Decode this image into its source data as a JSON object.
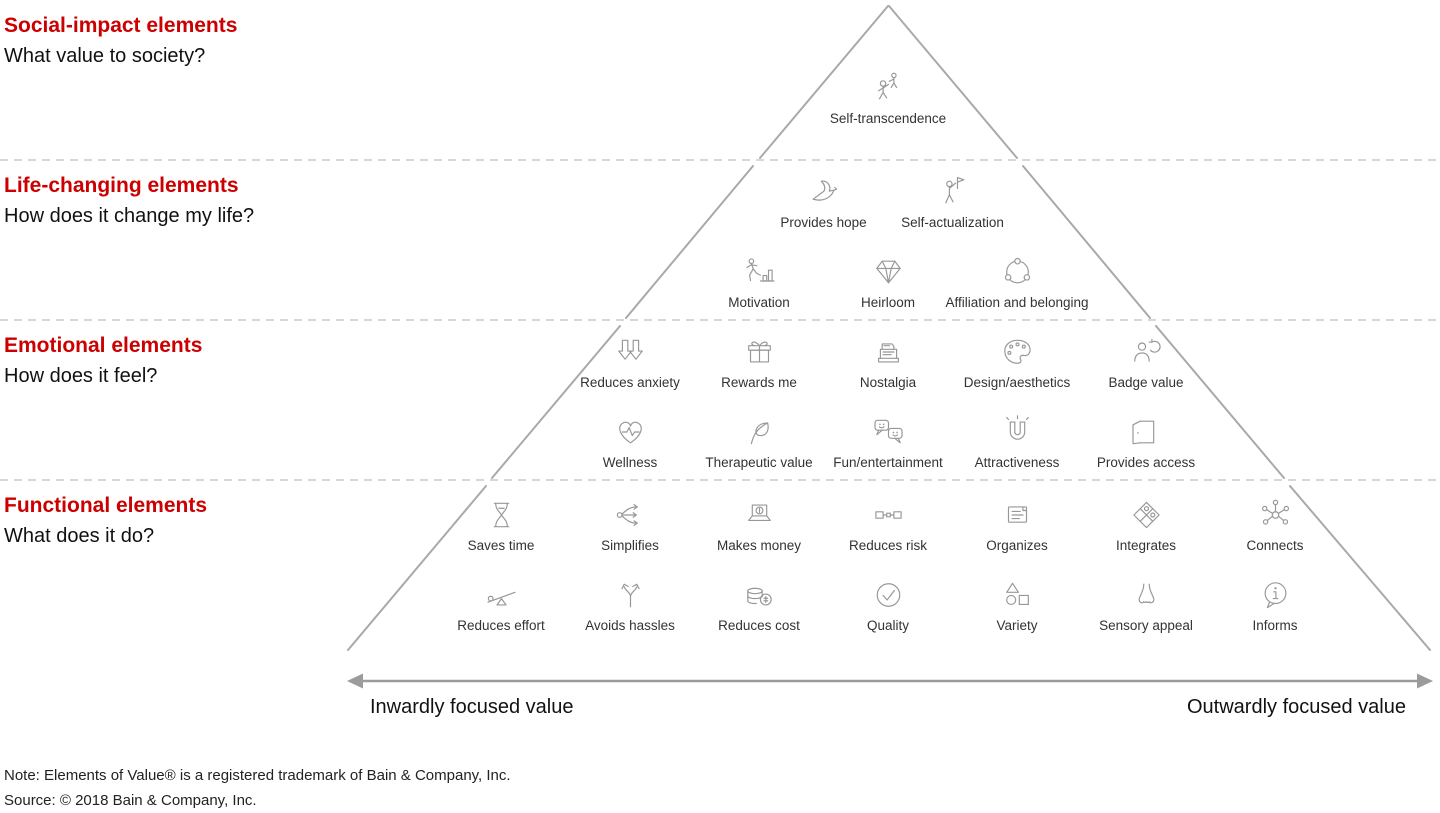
{
  "colors": {
    "heading_red": "#cc0000",
    "icon_gray": "#979797",
    "pyramid_line": "#a9a9a9",
    "divider_gray": "#cccccc",
    "arrow_gray": "#9b9b9b",
    "label_gray": "#333333"
  },
  "tiers": [
    {
      "id": "social-impact",
      "heading": "Social-impact elements",
      "question": "What value to society?",
      "rows": [
        [
          {
            "label": "Self-transcendence",
            "icon": "climbers"
          }
        ]
      ]
    },
    {
      "id": "life-changing",
      "heading": "Life-changing elements",
      "question": "How does it change my life?",
      "rows": [
        [
          {
            "label": "Provides hope",
            "icon": "dove"
          },
          {
            "label": "Self-actualization",
            "icon": "person-flag"
          }
        ],
        [
          {
            "label": "Motivation",
            "icon": "runner-chart"
          },
          {
            "label": "Heirloom",
            "icon": "diamond"
          },
          {
            "label": "Affiliation and belonging",
            "icon": "people-circle"
          }
        ]
      ]
    },
    {
      "id": "emotional",
      "heading": "Emotional elements",
      "question": "How does it feel?",
      "rows": [
        [
          {
            "label": "Reduces anxiety",
            "icon": "down-arrows"
          },
          {
            "label": "Rewards me",
            "icon": "gift"
          },
          {
            "label": "Nostalgia",
            "icon": "cash-register"
          },
          {
            "label": "Design/aesthetics",
            "icon": "palette"
          },
          {
            "label": "Badge value",
            "icon": "person-arrows"
          }
        ],
        [
          {
            "label": "Wellness",
            "icon": "heart-pulse"
          },
          {
            "label": "Therapeutic value",
            "icon": "leaf"
          },
          {
            "label": "Fun/entertainment",
            "icon": "chat-smileys"
          },
          {
            "label": "Attractiveness",
            "icon": "magnet"
          },
          {
            "label": "Provides access",
            "icon": "open-door"
          }
        ]
      ]
    },
    {
      "id": "functional",
      "heading": "Functional elements",
      "question": "What does it do?",
      "rows": [
        [
          {
            "label": "Saves time",
            "icon": "hourglass"
          },
          {
            "label": "Simplifies",
            "icon": "branch-arrows"
          },
          {
            "label": "Makes money",
            "icon": "laptop-dollar"
          },
          {
            "label": "Reduces risk",
            "icon": "seatbelt"
          },
          {
            "label": "Organizes",
            "icon": "note-card"
          },
          {
            "label": "Integrates",
            "icon": "puzzle"
          },
          {
            "label": "Connects",
            "icon": "network"
          }
        ],
        [
          {
            "label": "Reduces effort",
            "icon": "lever"
          },
          {
            "label": "Avoids hassles",
            "icon": "fork-arrows"
          },
          {
            "label": "Reduces cost",
            "icon": "coins"
          },
          {
            "label": "Quality",
            "icon": "check-circle"
          },
          {
            "label": "Variety",
            "icon": "shapes"
          },
          {
            "label": "Sensory appeal",
            "icon": "nose"
          },
          {
            "label": "Informs",
            "icon": "info-bubble"
          }
        ]
      ]
    }
  ],
  "axis": {
    "left_label": "Inwardly focused value",
    "right_label": "Outwardly focused value"
  },
  "notes": [
    "Note: Elements of Value® is a registered trademark of Bain & Company, Inc.",
    "Source: © 2018 Bain & Company, Inc."
  ]
}
